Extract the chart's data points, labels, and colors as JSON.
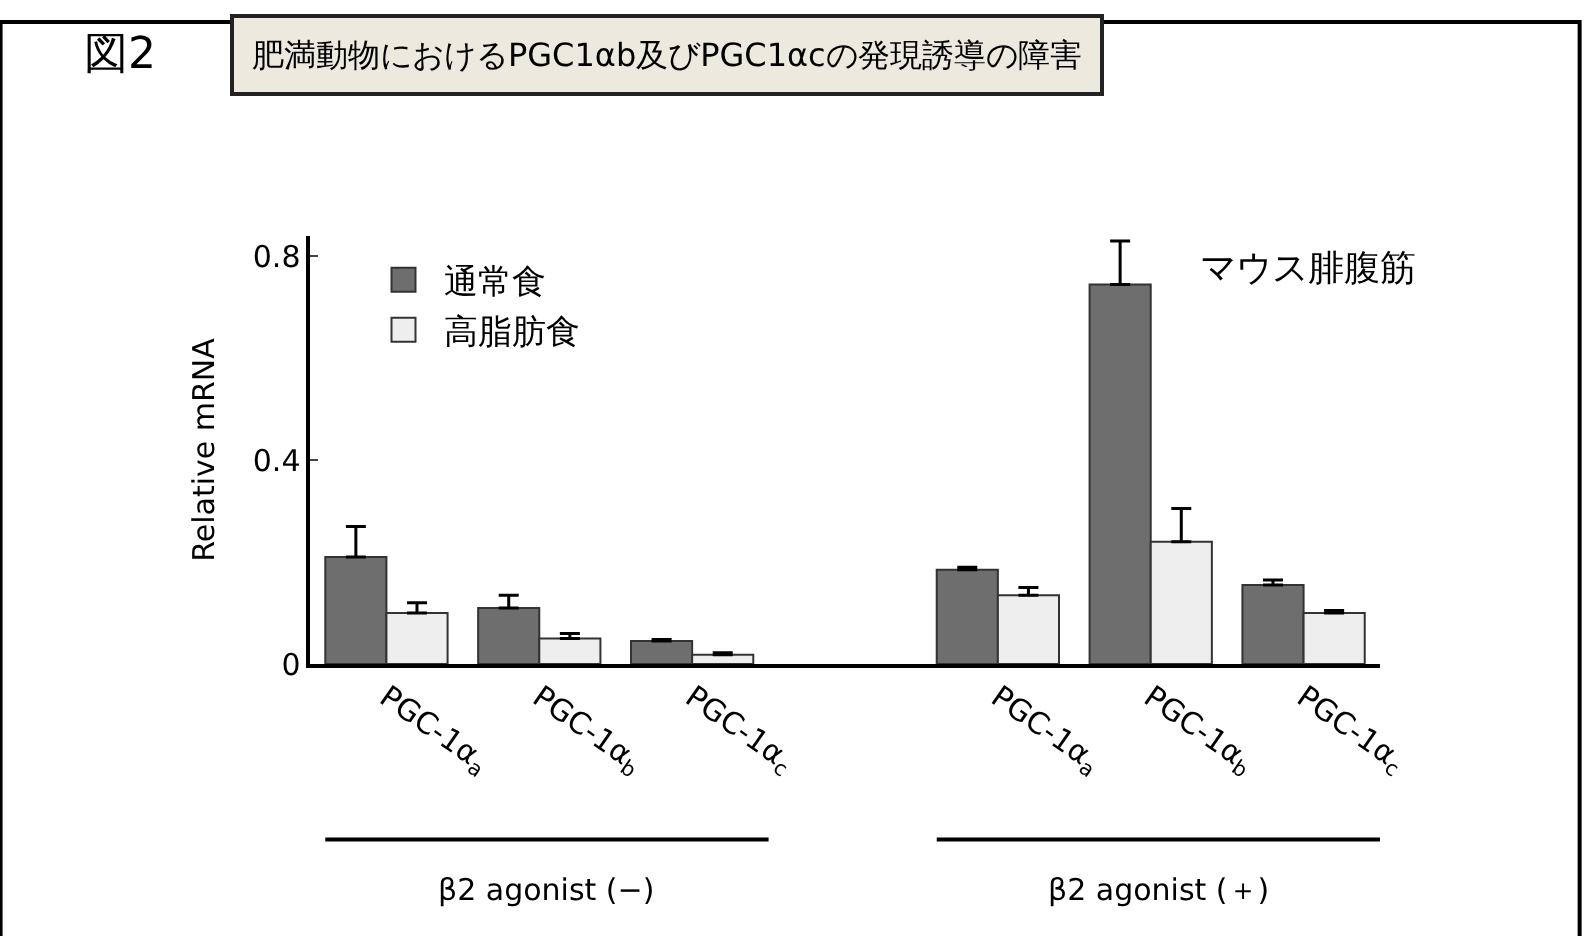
{
  "chart_data": {
    "type": "bar",
    "title": "図2",
    "subtitle": "肥満動物におけるPGC1αb及びPGC1αcの発現誘導の障害",
    "ylabel": "Relative mRNA",
    "categories": [
      "PGC-1α$_{a}$",
      "PGC-1α$_{b}$",
      "PGC-1α$_{c}$",
      null,
      "PGC-1α$_{a}$",
      "PGC-1α$_{b}$",
      "PGC-1α$_{c}$"
    ],
    "series": [
      {
        "name": "通常食",
        "color": "#6e6e6e",
        "values": [
          0.21,
          0.11,
          0.045,
          null,
          0.185,
          0.745,
          0.155
        ],
        "errors": [
          [
            0.21,
            0.27
          ],
          [
            0.11,
            0.135
          ],
          [
            0.045,
            0.048
          ],
          null,
          [
            0.185,
            0.19
          ],
          [
            0.745,
            0.83
          ],
          [
            0.155,
            0.165
          ]
        ]
      },
      {
        "name": "高脂肪食",
        "color": "#eeeeee",
        "values": [
          0.1,
          0.05,
          0.018,
          null,
          0.135,
          0.24,
          0.1
        ],
        "errors": [
          [
            0.1,
            0.12
          ],
          [
            0.05,
            0.06
          ],
          [
            0.018,
            0.022
          ],
          null,
          [
            0.135,
            0.15
          ],
          [
            0.24,
            0.305
          ],
          [
            0.1,
            0.105
          ]
        ]
      }
    ],
    "ylim": [
      0,
      0.84
    ],
    "yticks": [
      0,
      0.4,
      0.8
    ],
    "legend": "top left",
    "annotations": [
      "マウス腓腹筋",
      "β2 agonist (−)",
      "β2 agonist (＋)"
    ]
  }
}
